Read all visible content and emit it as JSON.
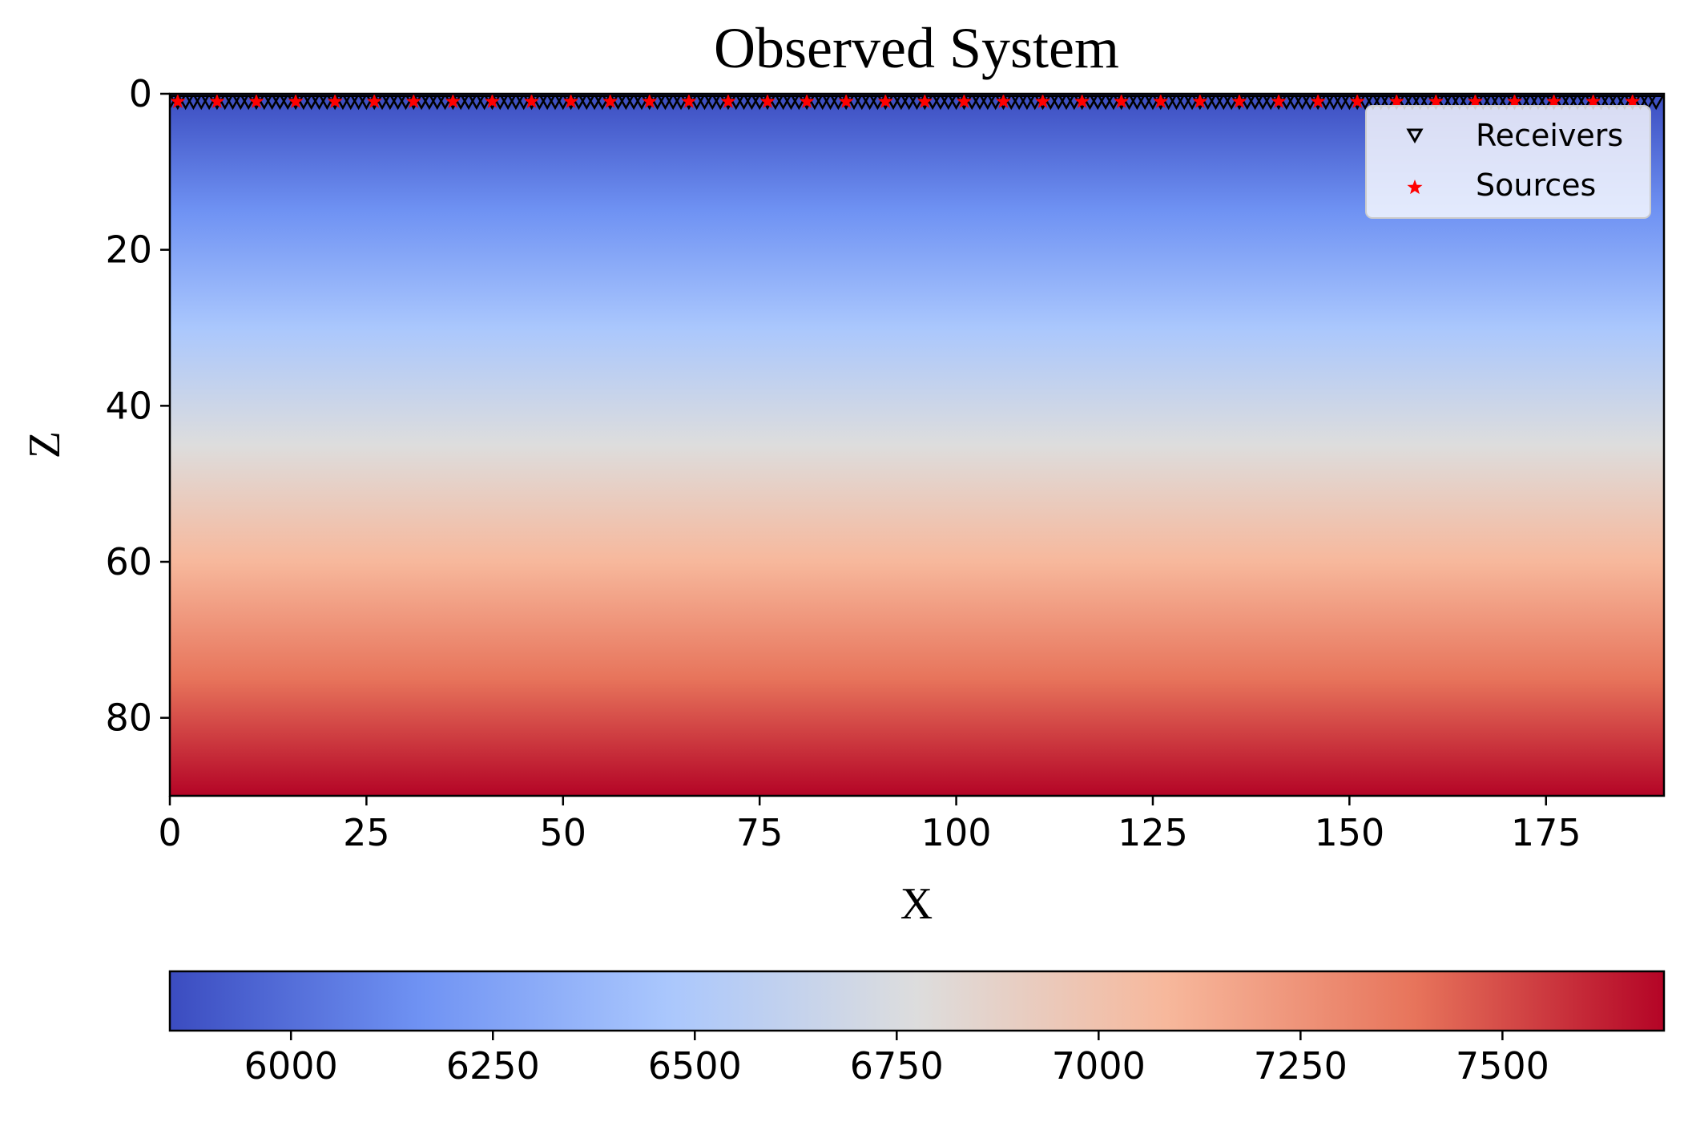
{
  "chart_data": {
    "type": "heatmap",
    "title": "Observed System",
    "xlabel": "X",
    "ylabel": "Z",
    "xlim": [
      0,
      190
    ],
    "ylim": [
      90,
      0
    ],
    "x_ticks": [
      0,
      25,
      50,
      75,
      100,
      125,
      150,
      175
    ],
    "y_ticks": [
      0,
      20,
      40,
      60,
      80
    ],
    "colormap": "coolwarm",
    "colormap_stops": [
      "#3b4cc0",
      "#6f92f3",
      "#aac7fd",
      "#dddddd",
      "#f7b89c",
      "#e7745b",
      "#b40426"
    ],
    "field": {
      "description_axis": "z",
      "z": [
        0,
        90
      ],
      "value_range": [
        5850,
        7700
      ]
    },
    "colorbar": {
      "orientation": "horizontal",
      "ticks": [
        6000,
        6250,
        6500,
        6750,
        7000,
        7250,
        7500
      ],
      "range": [
        5850,
        7700
      ]
    },
    "series": [
      {
        "name": "Receivers",
        "marker": "triangle-down-open",
        "color": "#000000",
        "z": 1,
        "x_start": 0,
        "x_step": 1,
        "x_end": 189
      },
      {
        "name": "Sources",
        "marker": "star",
        "color": "#ff0000",
        "z": 1,
        "x_start": 1,
        "x_step": 5,
        "x_end": 186
      }
    ],
    "legend": {
      "position": "top-right",
      "entries": [
        "Receivers",
        "Sources"
      ]
    },
    "grid": false
  }
}
